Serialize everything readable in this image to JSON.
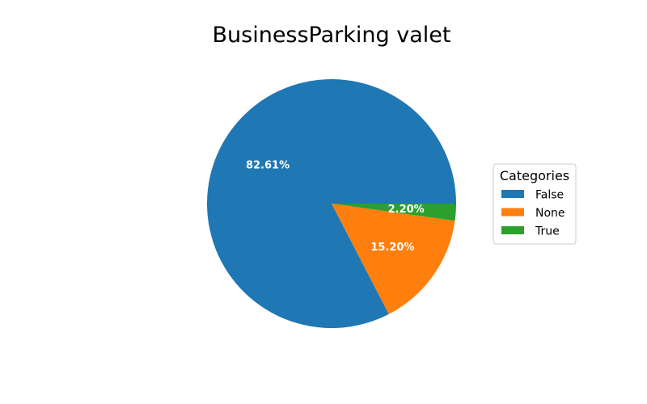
{
  "chart_data": {
    "type": "pie",
    "title": "BusinessParking valet",
    "legend_title": "Categories",
    "legend_position": "right",
    "slices": [
      {
        "label": "False",
        "value": 82.61,
        "pct_label": "82.61%",
        "color": "#1f77b4"
      },
      {
        "label": "None",
        "value": 15.2,
        "pct_label": "15.20%",
        "color": "#ff7f0e"
      },
      {
        "label": "True",
        "value": 2.2,
        "pct_label": "2.20%",
        "color": "#2ca02c"
      }
    ]
  }
}
